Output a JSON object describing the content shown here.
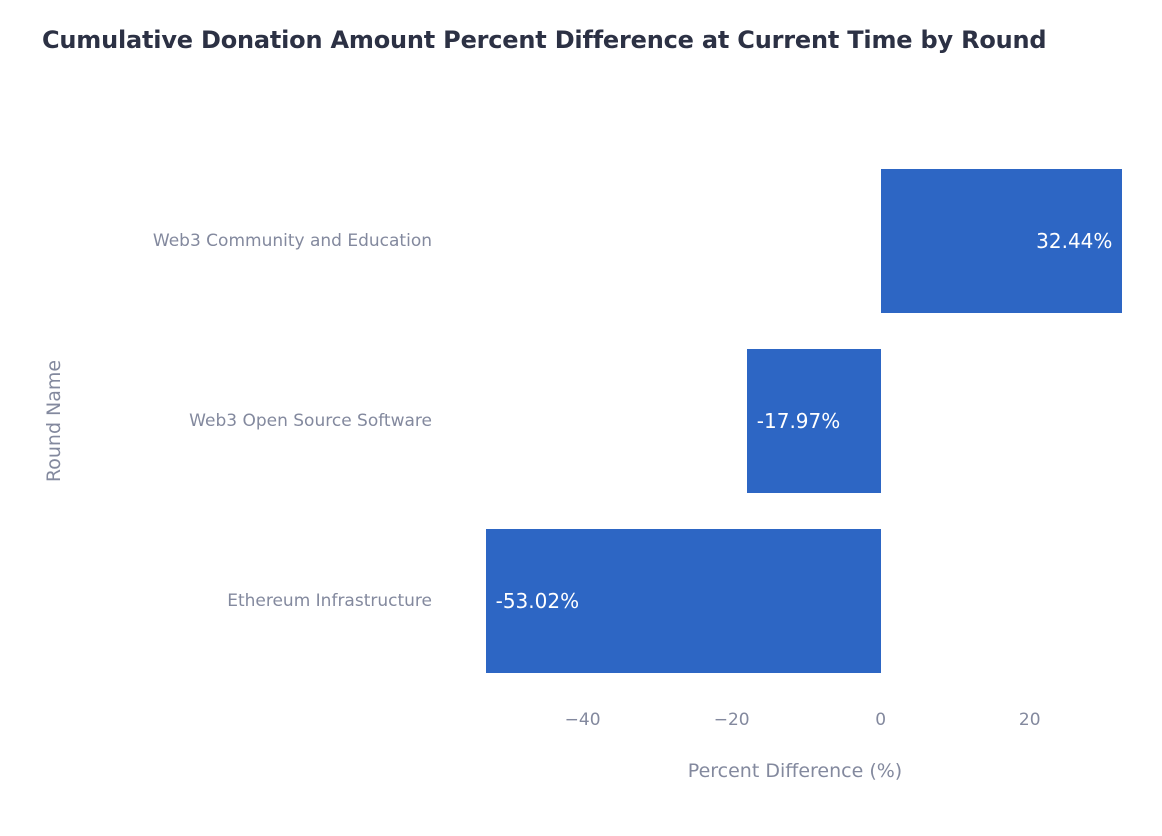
{
  "chart_data": {
    "type": "bar",
    "orientation": "horizontal",
    "title": "Cumulative Donation Amount Percent Difference at Current Time by Round",
    "xlabel": "Percent Difference (%)",
    "ylabel": "Round Name",
    "categories": [
      "Web3 Community and Education",
      "Web3 Open Source Software",
      "Ethereum Infrastructure"
    ],
    "values": [
      32.44,
      -17.97,
      -53.02
    ],
    "value_labels": [
      "32.44%",
      "-17.97%",
      "-53.02%"
    ],
    "xticks": [
      {
        "value": -40,
        "label": "−40"
      },
      {
        "value": -20,
        "label": "−20"
      },
      {
        "value": 0,
        "label": "0"
      },
      {
        "value": 20,
        "label": "20"
      }
    ],
    "xlim": [
      -57.8,
      34.8
    ],
    "grid": false,
    "legend": false,
    "colors": {
      "bar": "#2d66c4",
      "value_label": "#ffffff",
      "axis_text": "#83899e",
      "title_text": "#2c3144",
      "background": "#ffffff"
    }
  }
}
